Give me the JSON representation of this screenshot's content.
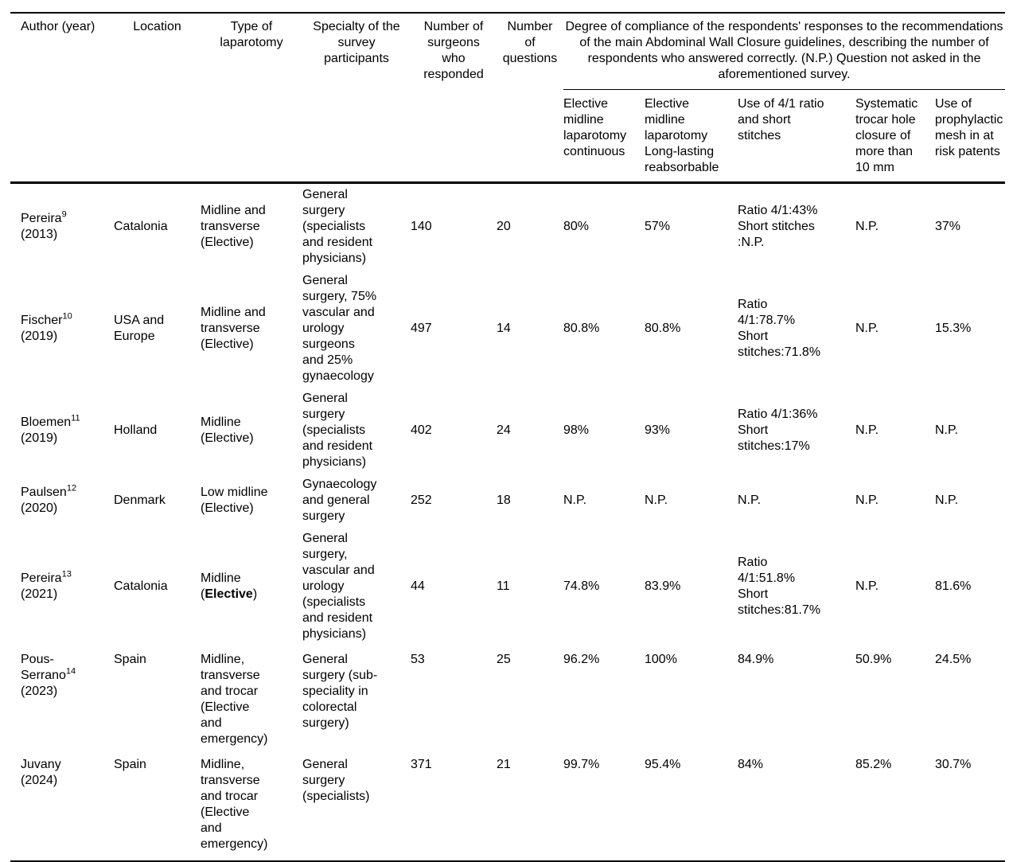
{
  "colors": {
    "background": "#ffffff",
    "text": "#000000",
    "rule": "#000000"
  },
  "table": {
    "columns": [
      {
        "id": "author",
        "label": "Author (year)"
      },
      {
        "id": "location",
        "label": "Location"
      },
      {
        "id": "laparotomy",
        "label": "Type of\nlaparotomy"
      },
      {
        "id": "specialty",
        "label": "Specialty of the\nsurvey\nparticipants"
      },
      {
        "id": "respondents",
        "label": "Number of\nsurgeons\nwho\nresponded"
      },
      {
        "id": "questions",
        "label": "Number\nof\nquestions"
      }
    ],
    "compliance_group": {
      "label": "Degree of compliance of the respondents' responses to the recommendations\nof the main Abdominal Wall Closure guidelines, describing the number of\nrespondents who answered correctly. (N.P.) Question not asked in the\naforementioned survey.",
      "columns": [
        {
          "id": "elective_continuous",
          "label": "Elective\nmidline\nlaparotomy\ncontinuous"
        },
        {
          "id": "elective_longlasting",
          "label": "Elective\nmidline\nlaparotomy\nLong-lasting\nreabsorbable"
        },
        {
          "id": "ratio_short_stitches",
          "label": "Use of 4/1 ratio\nand short\nstitches"
        },
        {
          "id": "trocar_closure",
          "label": "Systematic\ntrocar hole\nclosure of\nmore than\n10 mm"
        },
        {
          "id": "prophylactic_mesh",
          "label": "Use of\nprophylactic\nmesh in at\nrisk patents"
        }
      ]
    },
    "rows": [
      {
        "author": {
          "name": "Pereira",
          "sup": "9",
          "year": "(2013)"
        },
        "location": "Catalonia",
        "laparotomy": "Midline and\ntransverse\n(Elective)",
        "specialty": "General\nsurgery\n(specialists\nand resident\nphysicians)",
        "respondents": "140",
        "questions": "20",
        "elective_continuous": "80%",
        "elective_longlasting": "57%",
        "ratio_short_stitches": "Ratio 4/1:43%\nShort stitches\n:N.P.",
        "trocar_closure": "N.P.",
        "prophylactic_mesh": "37%"
      },
      {
        "author": {
          "name": "Fischer",
          "sup": "10",
          "year": "(2019)"
        },
        "location": "USA and\nEurope",
        "laparotomy": "Midline and\ntransverse\n(Elective)",
        "specialty": "General\nsurgery, 75%\nvascular and\nurology\nsurgeons\nand 25%\ngynaecology",
        "respondents": "497",
        "questions": "14",
        "elective_continuous": "80.8%",
        "elective_longlasting": "80.8%",
        "ratio_short_stitches": "Ratio\n4/1:78.7%\nShort\nstitches:71.8%",
        "trocar_closure": "N.P.",
        "prophylactic_mesh": "15.3%"
      },
      {
        "author": {
          "name": "Bloemen",
          "sup": "11",
          "year": "(2019)"
        },
        "location": "Holland",
        "laparotomy": "Midline\n(Elective)",
        "specialty": "General\nsurgery\n(specialists\nand resident\nphysicians)",
        "respondents": "402",
        "questions": "24",
        "elective_continuous": "98%",
        "elective_longlasting": "93%",
        "ratio_short_stitches": "Ratio 4/1:36%\nShort\nstitches:17%",
        "trocar_closure": "N.P.",
        "prophylactic_mesh": "N.P."
      },
      {
        "author": {
          "name": "Paulsen",
          "sup": "12",
          "year": "(2020)"
        },
        "location": "Denmark",
        "laparotomy": "Low midline\n(Elective)",
        "specialty": "Gynaecology\nand general\nsurgery",
        "respondents": "252",
        "questions": "18",
        "elective_continuous": "N.P.",
        "elective_longlasting": "N.P.",
        "ratio_short_stitches": "N.P.",
        "trocar_closure": "N.P.",
        "prophylactic_mesh": "N.P."
      },
      {
        "author": {
          "name": "Pereira",
          "sup": "13",
          "year": "(2021)"
        },
        "location": "Catalonia",
        "laparotomy": "Midline\n(**Elective**)",
        "specialty": "General\nsurgery,\nvascular and\nurology\n(specialists\nand resident\nphysicians)",
        "respondents": "44",
        "questions": "11",
        "elective_continuous": "74.8%",
        "elective_longlasting": "83.9%",
        "ratio_short_stitches": "Ratio\n4/1:51.8%\nShort\nstitches:81.7%",
        "trocar_closure": "N.P.",
        "prophylactic_mesh": "81.6%"
      },
      {
        "author": {
          "name": "Pous-\nSerrano",
          "sup": "14",
          "year": "(2023)"
        },
        "location": "Spain",
        "laparotomy": "Midline,\ntransverse\nand trocar\n(Elective\nand\nemergency)",
        "specialty": "General\nsurgery (sub-\nspeciality in\ncolorectal\nsurgery)",
        "respondents": "53",
        "questions": "25",
        "elective_continuous": "96.2%",
        "elective_longlasting": "100%",
        "ratio_short_stitches": "84.9%",
        "trocar_closure": "50.9%",
        "prophylactic_mesh": "24.5%"
      },
      {
        "author": {
          "name": "Juvany",
          "sup": "",
          "year": "(2024)"
        },
        "location": "Spain",
        "laparotomy": "Midline,\ntransverse\nand trocar\n(Elective\nand\nemergency)",
        "specialty": "General\nsurgery\n(specialists)",
        "respondents": "371",
        "questions": "21",
        "elective_continuous": "99.7%",
        "elective_longlasting": "95.4%",
        "ratio_short_stitches": "84%",
        "trocar_closure": "85.2%",
        "prophylactic_mesh": "30.7%"
      }
    ]
  }
}
